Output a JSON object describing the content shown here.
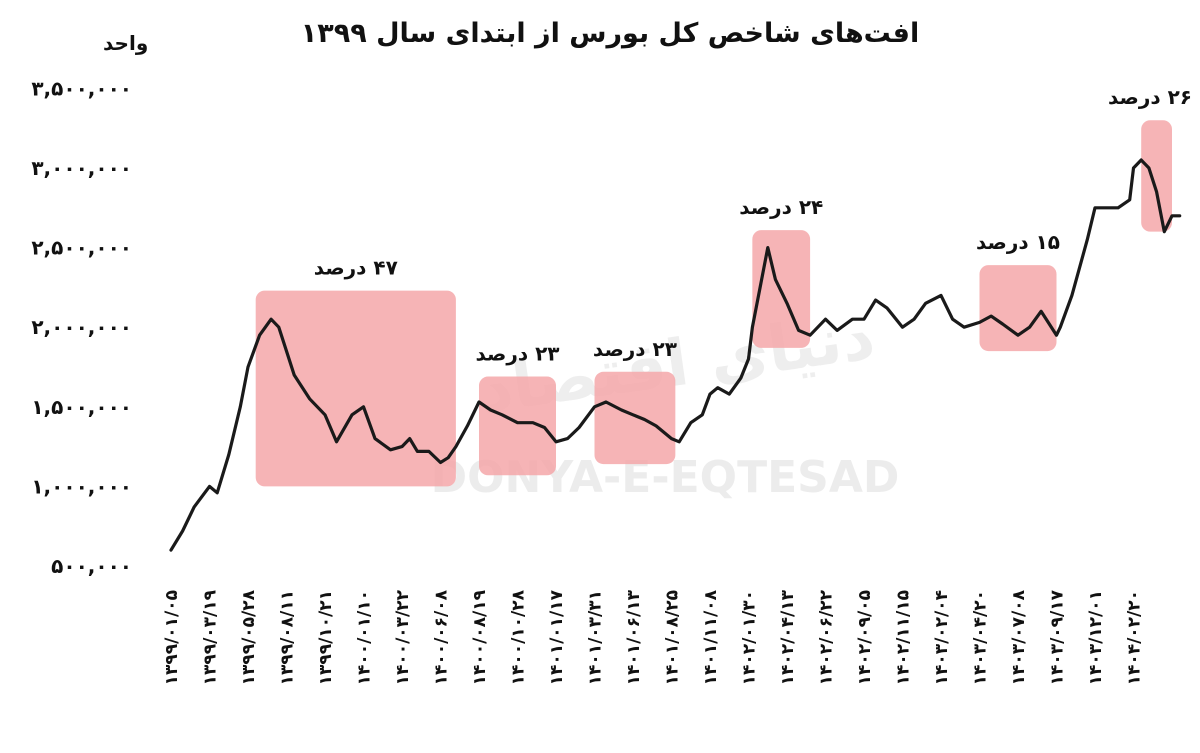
{
  "chart_data": {
    "type": "line",
    "title": "افت‌های شاخص کل بورس از ابتدای سال ۱۳۹۹",
    "ylabel": "واحد",
    "xlabel": "",
    "ylim": [
      500000,
      3500000
    ],
    "grid": false,
    "y_ticks": [
      500000,
      1000000,
      1500000,
      2000000,
      2500000,
      3000000,
      3500000
    ],
    "y_tick_labels": [
      "۵۰۰,۰۰۰",
      "۱,۰۰۰,۰۰۰",
      "۱,۵۰۰,۰۰۰",
      "۲,۰۰۰,۰۰۰",
      "۲,۵۰۰,۰۰۰",
      "۳,۰۰۰,۰۰۰",
      "۳,۵۰۰,۰۰۰"
    ],
    "x_tick_labels": [
      "۱۳۹۹/۰۱/۰۵",
      "۱۳۹۹/۰۳/۱۹",
      "۱۳۹۹/۰۵/۲۸",
      "۱۳۹۹/۰۸/۱۱",
      "۱۳۹۹/۱۰/۲۱",
      "۱۴۰۰/۰۱/۱۰",
      "۱۴۰۰/۰۳/۲۲",
      "۱۴۰۰/۰۶/۰۸",
      "۱۴۰۰/۰۸/۱۹",
      "۱۴۰۰/۱۰/۲۸",
      "۱۴۰۱/۰۱/۱۷",
      "۱۴۰۱/۰۳/۳۱",
      "۱۴۰۱/۰۶/۱۳",
      "۱۴۰۱/۰۸/۲۵",
      "۱۴۰۱/۱۱/۰۸",
      "۱۴۰۲/۰۱/۳۰",
      "۱۴۰۲/۰۴/۱۳",
      "۱۴۰۲/۰۶/۲۲",
      "۱۴۰۲/۰۹/۰۵",
      "۱۴۰۲/۱۱/۱۵",
      "۱۴۰۳/۰۲/۰۴",
      "۱۴۰۳/۰۴/۲۰",
      "۱۴۰۳/۰۷/۰۸",
      "۱۴۰۳/۰۹/۱۷",
      "۱۴۰۳/۱۲/۰۱",
      "۱۴۰۴/۰۲/۲۰"
    ],
    "series": [
      {
        "x": [
          0,
          0.3,
          0.6,
          1,
          1.2,
          1.5,
          1.8,
          2,
          2.3,
          2.6,
          2.8,
          3.2,
          3.6,
          4,
          4.3,
          4.7,
          5,
          5.3,
          5.7,
          6,
          6.2,
          6.4,
          6.7,
          7,
          7.2,
          7.4,
          7.7,
          8,
          8.3,
          8.6,
          9,
          9.4,
          9.7,
          10,
          10.3,
          10.6,
          11,
          11.3,
          11.7,
          12,
          12.3,
          12.6,
          13,
          13.2,
          13.5,
          13.8,
          14,
          14.2,
          14.5,
          14.8,
          15,
          15.1,
          15.3,
          15.5,
          15.7,
          16,
          16.3,
          16.6,
          17,
          17.3,
          17.7,
          18,
          18.3,
          18.6,
          19,
          19.3,
          19.6,
          20,
          20.3,
          20.6,
          21,
          21.3,
          21.6,
          22,
          22.3,
          22.6,
          23,
          23.1,
          23.4,
          23.8,
          24,
          24.3,
          24.6,
          24.9,
          25,
          25.2,
          25.4,
          25.6,
          25.8,
          26,
          26.2
        ],
        "y": [
          600000,
          720000,
          870000,
          1000000,
          960000,
          1200000,
          1500000,
          1750000,
          1950000,
          2050000,
          2000000,
          1700000,
          1550000,
          1450000,
          1280000,
          1450000,
          1500000,
          1300000,
          1230000,
          1250000,
          1300000,
          1220000,
          1220000,
          1150000,
          1180000,
          1250000,
          1380000,
          1530000,
          1480000,
          1450000,
          1400000,
          1400000,
          1370000,
          1280000,
          1300000,
          1370000,
          1500000,
          1530000,
          1480000,
          1450000,
          1420000,
          1380000,
          1300000,
          1280000,
          1400000,
          1450000,
          1580000,
          1620000,
          1580000,
          1680000,
          1800000,
          2000000,
          2250000,
          2500000,
          2300000,
          2150000,
          1980000,
          1950000,
          2050000,
          1980000,
          2050000,
          2050000,
          2170000,
          2120000,
          2000000,
          2050000,
          2150000,
          2200000,
          2050000,
          2000000,
          2030000,
          2070000,
          2020000,
          1950000,
          2000000,
          2100000,
          1950000,
          2000000,
          2200000,
          2550000,
          2750000,
          2750000,
          2750000,
          2800000,
          3000000,
          3050000,
          3000000,
          2850000,
          2600000,
          2700000,
          2700000
        ]
      }
    ],
    "annotations": [
      {
        "label": "۴۷ درصد",
        "x_start": 2.2,
        "x_end": 7.4,
        "y_low": 1000000,
        "y_high": 2230000
      },
      {
        "label": "۲۳ درصد",
        "x_start": 8.0,
        "x_end": 10.0,
        "y_low": 1070000,
        "y_high": 1690000
      },
      {
        "label": "۲۳ درصد",
        "x_start": 11.0,
        "x_end": 13.1,
        "y_low": 1140000,
        "y_high": 1720000
      },
      {
        "label": "۲۴ درصد",
        "x_start": 15.1,
        "x_end": 16.6,
        "y_low": 1870000,
        "y_high": 2610000
      },
      {
        "label": "۱۵ درصد",
        "x_start": 21.0,
        "x_end": 23.0,
        "y_low": 1850000,
        "y_high": 2390000
      },
      {
        "label": "۲۶ درصد",
        "x_start": 25.2,
        "x_end": 26.0,
        "y_low": 2600000,
        "y_high": 3300000
      }
    ],
    "highlight_color": "#f4a7a9",
    "line_color": "#1a1a1a"
  },
  "watermark": {
    "latin": "DONYA-E-EQTESAD",
    "persian": "دنیای اقتصاد"
  }
}
